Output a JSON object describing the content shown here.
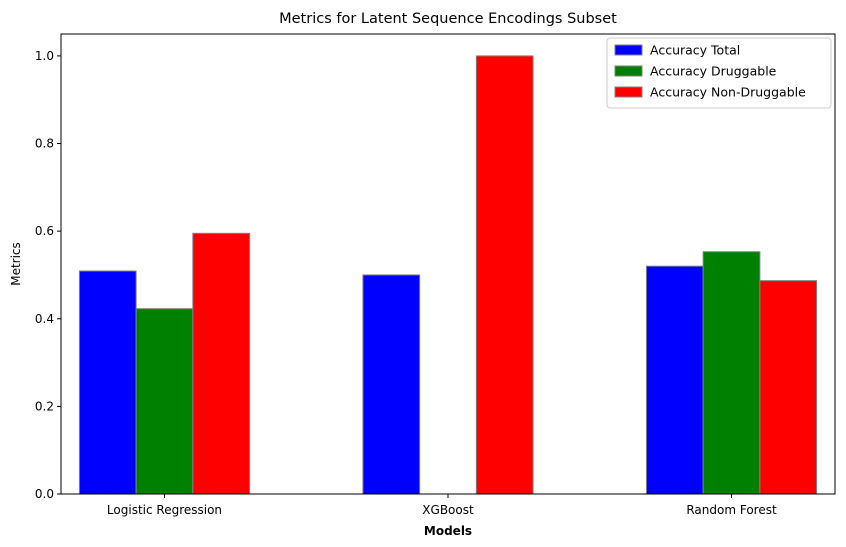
{
  "chart_data": {
    "type": "bar",
    "title": "Metrics for Latent Sequence Encodings Subset",
    "xlabel": "Models",
    "ylabel": "Metrics",
    "categories": [
      "Logistic Regression",
      "XGBoost",
      "Random Forest"
    ],
    "series": [
      {
        "name": "Accuracy Total",
        "color": "#0000ff",
        "values": [
          0.509,
          0.5,
          0.52
        ]
      },
      {
        "name": "Accuracy Druggable",
        "color": "#008000",
        "values": [
          0.423,
          0.0,
          0.553
        ]
      },
      {
        "name": "Accuracy Non-Druggable",
        "color": "#ff0000",
        "values": [
          0.595,
          1.0,
          0.487
        ]
      }
    ],
    "ylim": [
      0,
      1.05
    ],
    "yticks": [
      "0.0",
      "0.2",
      "0.4",
      "0.6",
      "0.8",
      "1.0"
    ],
    "bar_edge_color": "#808080",
    "grid": false,
    "legend_position": "top-right"
  }
}
